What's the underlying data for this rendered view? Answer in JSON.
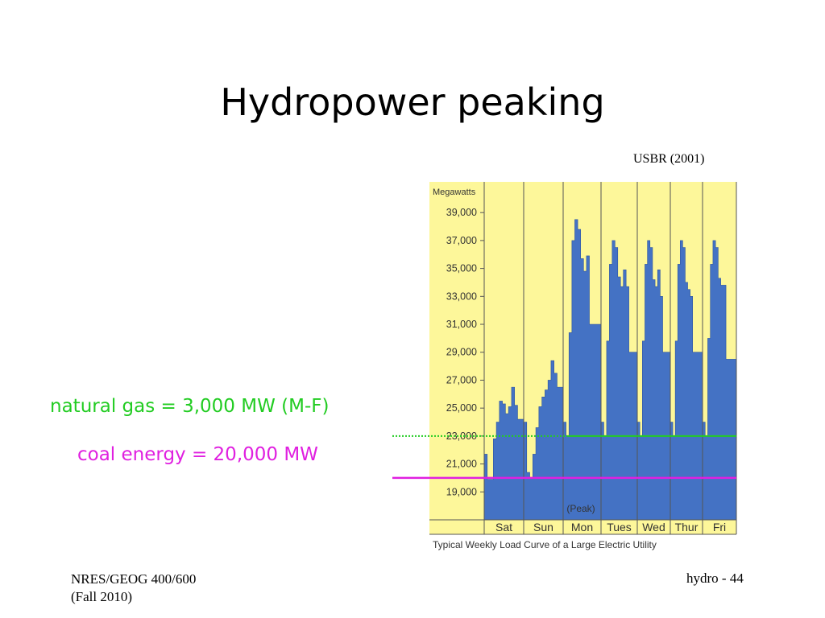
{
  "slide": {
    "title": "Hydropower peaking",
    "source": "USBR (2001)",
    "footer_left_line1": "NRES/GEOG 400/600",
    "footer_left_line2": "(Fall 2010)",
    "footer_right": "hydro - 44"
  },
  "annotations": {
    "natural_gas": "natural gas = 3,000 MW (M-F)",
    "coal": "coal energy = 20,000 MW",
    "natural_gas_color": "#22cc22",
    "coal_color": "#e020e0"
  },
  "chart_data": {
    "type": "area",
    "title": "",
    "caption": "Typical Weekly Load Curve of a Large Electric Utility",
    "ylabel": "Megawatts",
    "ylim": [
      17000,
      41200
    ],
    "yticks": [
      19000,
      21000,
      23000,
      25000,
      27000,
      29000,
      31000,
      33000,
      35000,
      37000,
      39000
    ],
    "ytick_labels": [
      "19,000",
      "21,000",
      "23,000",
      "25,000",
      "27,000",
      "29,000",
      "31,000",
      "33,000",
      "35,000",
      "37,000",
      "39,000"
    ],
    "categories": [
      "Sat",
      "Sun",
      "Mon",
      "Tues",
      "Wed",
      "Thur",
      "Fri"
    ],
    "peak_label": "(Peak)",
    "fill_color": "#4472c4",
    "background_color": "#fdf79a",
    "series": [
      {
        "days": [
          [
            21700,
            19900,
            19900,
            22800,
            24000,
            25500,
            25300,
            24600,
            25100,
            26500,
            25200,
            24200,
            24200
          ],
          [
            24000,
            20400,
            20000,
            21700,
            23600,
            25100,
            25800,
            26300,
            27000,
            28400,
            27500,
            26500,
            26500
          ],
          [
            24000,
            23000,
            30400,
            37000,
            38500,
            37800,
            35700,
            34800,
            35900,
            31000,
            31000,
            31000,
            31000
          ],
          [
            24000,
            23000,
            29800,
            35300,
            37000,
            36500,
            34400,
            33700,
            34900,
            33700,
            29000,
            29000,
            29000
          ],
          [
            24000,
            23000,
            29800,
            35300,
            37000,
            36500,
            34200,
            33700,
            34900,
            33000,
            29000,
            29000,
            29000
          ],
          [
            24000,
            23000,
            29800,
            35300,
            37000,
            36500,
            34000,
            33500,
            33000,
            29000,
            29000,
            29000,
            29000
          ],
          [
            24000,
            23000,
            30000,
            35300,
            37000,
            36500,
            34300,
            33800,
            33800,
            28500,
            28500,
            28500,
            28500
          ]
        ]
      }
    ],
    "reference_lines": [
      {
        "label": "natural gas = 3,000 MW (M-F)",
        "value": 23000
      },
      {
        "label": "coal energy = 20,000 MW",
        "value": 20000
      }
    ]
  }
}
